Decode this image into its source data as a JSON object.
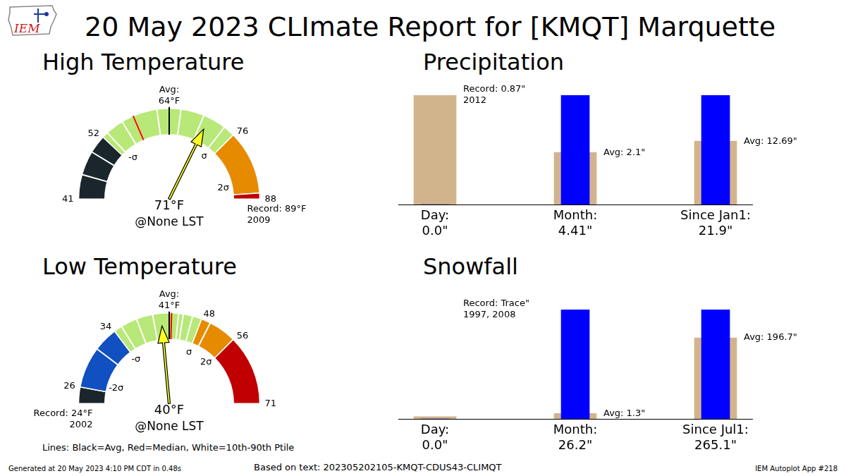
{
  "title": "20 May 2023 CLImate Report for [KMQT] Marquette",
  "logo": "IEM",
  "note": "Lines: Black=Avg, Red=Median, White=10th-90th Ptile",
  "footer": {
    "left": "Generated at 20 May 2023 4:10 PM CDT in 0.48s",
    "center": "Based on text: 202305202105-KMQT-CDUS43-CLIMQT",
    "right": "IEM Autoplot App #218"
  },
  "chart_data": [
    {
      "type": "gauge",
      "title": "High Temperature",
      "range": [
        41,
        88
      ],
      "ticks": [
        41,
        52,
        76,
        88
      ],
      "bands": [
        {
          "from": 41,
          "to": 52,
          "color": "#1b262c"
        },
        {
          "from": 52,
          "to": 76,
          "color": "#b8e878"
        },
        {
          "from": 76,
          "to": 87,
          "color": "#e68a00"
        },
        {
          "from": 87,
          "to": 88,
          "color": "#c00000"
        }
      ],
      "average": 64,
      "average_label": [
        "Avg:",
        "64°F"
      ],
      "median": 58,
      "percentiles": [
        45,
        49,
        53,
        56,
        58,
        62,
        66,
        70,
        74
      ],
      "sigma": [
        {
          "value": 53.5,
          "label": "-σ"
        },
        {
          "value": 74.5,
          "label": "σ"
        },
        {
          "value": 85,
          "label": "2σ"
        }
      ],
      "observed": {
        "value": 71,
        "label": [
          "71°F",
          "@None LST"
        ]
      },
      "record": {
        "value": 89,
        "label": [
          "Record: 89°F",
          "2009"
        ]
      }
    },
    {
      "type": "gauge",
      "title": "Low Temperature",
      "range": [
        24,
        71
      ],
      "ticks": [
        26,
        34,
        48,
        56,
        71
      ],
      "bands": [
        {
          "from": 24,
          "to": 26,
          "color": "#1b262c"
        },
        {
          "from": 26,
          "to": 34,
          "color": "#1050c0"
        },
        {
          "from": 34,
          "to": 48,
          "color": "#b8e878"
        },
        {
          "from": 48,
          "to": 56,
          "color": "#e68a00"
        },
        {
          "from": 56,
          "to": 71,
          "color": "#c00000"
        }
      ],
      "average": 41,
      "average_label": [
        "Avg:",
        "41°F"
      ],
      "median": 41.5,
      "percentiles": [
        31,
        35,
        37,
        39,
        41,
        43,
        44,
        46,
        50
      ],
      "sigma": [
        {
          "value": 27,
          "label": "-2σ"
        },
        {
          "value": 34,
          "label": "-σ"
        },
        {
          "value": 48,
          "label": "σ"
        },
        {
          "value": 55,
          "label": "2σ"
        }
      ],
      "observed": {
        "value": 40,
        "label": [
          "40°F",
          "@None LST"
        ]
      },
      "record": {
        "value": 24,
        "label": [
          "Record: 24°F",
          "2002"
        ]
      }
    },
    {
      "type": "bar",
      "title": "Precipitation",
      "tick_labels": false,
      "categories": [
        [
          "Day:",
          "0.0\""
        ],
        [
          "Month:",
          "4.41\""
        ],
        [
          "Since Jan1:",
          "21.9\""
        ]
      ],
      "series": [
        {
          "color": "#d2b48c",
          "values": [
            0.87,
            2.1,
            12.69
          ]
        },
        {
          "color": "#0000ff",
          "values": [
            0.0,
            4.41,
            21.9
          ]
        }
      ],
      "ylims": [
        [
          0,
          0.87
        ],
        [
          0,
          4.41
        ],
        [
          0,
          21.9
        ]
      ],
      "annotations": [
        [
          "Record: 0.87\"",
          "2012"
        ],
        [
          "Avg: 2.1\""
        ],
        [
          "Avg: 12.69\""
        ]
      ]
    },
    {
      "type": "bar",
      "title": "Snowfall",
      "tick_labels": false,
      "categories": [
        [
          "Day:",
          "0.0\""
        ],
        [
          "Month:",
          "26.2\""
        ],
        [
          "Since Jul1:",
          "265.1\""
        ]
      ],
      "series": [
        {
          "color": "#d2b48c",
          "values": [
            0.0001,
            1.3,
            196.7
          ]
        },
        {
          "color": "#0000ff",
          "values": [
            0.0,
            26.2,
            265.1
          ]
        }
      ],
      "ylims": [
        [
          0,
          0.005
        ],
        [
          0,
          26.2
        ],
        [
          0,
          265.1
        ]
      ],
      "annotations": [
        [
          "Record: Trace\"",
          "1997, 2008"
        ],
        [
          "Avg: 1.3\""
        ],
        [
          "Avg: 196.7\""
        ]
      ]
    }
  ]
}
